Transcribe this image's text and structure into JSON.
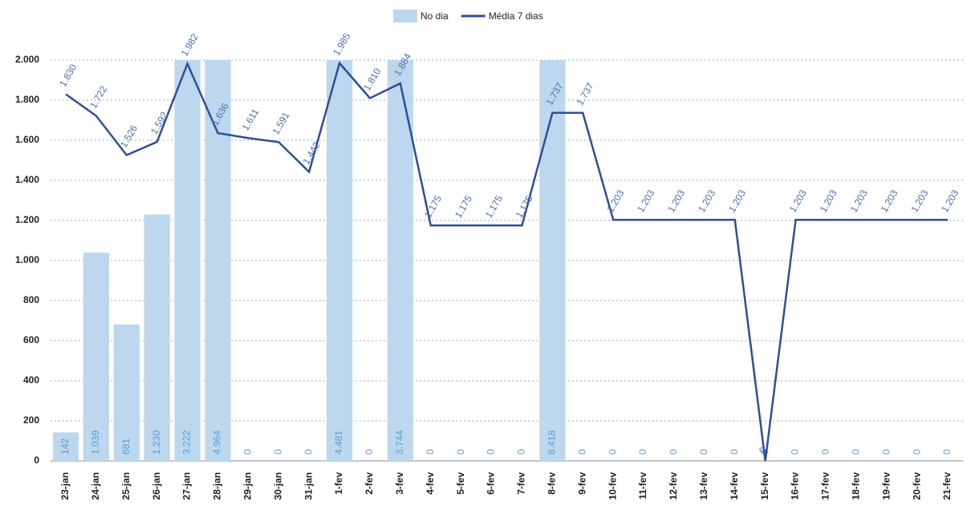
{
  "chart_data": {
    "type": "bar_line",
    "categories": [
      "23-jan",
      "24-jan",
      "25-jan",
      "26-jan",
      "27-jan",
      "28-jan",
      "29-jan",
      "30-jan",
      "31-jan",
      "1-fev",
      "2-fev",
      "3-fev",
      "4-fev",
      "5-fev",
      "6-fev",
      "7-fev",
      "8-fev",
      "9-fev",
      "10-fev",
      "11-fev",
      "12-fev",
      "13-fev",
      "14-fev",
      "15-fev",
      "16-fev",
      "17-fev",
      "18-fev",
      "19-fev",
      "20-fev",
      "21-fev"
    ],
    "series": [
      {
        "name": "No dia",
        "type": "bar",
        "color": "#bdd7ee",
        "values": [
          142,
          1039,
          681,
          1230,
          3222,
          4964,
          0,
          0,
          0,
          4481,
          0,
          3744,
          0,
          0,
          0,
          0,
          8418,
          0,
          0,
          0,
          0,
          0,
          0,
          0,
          0,
          0,
          0,
          0,
          0,
          0
        ],
        "value_labels": [
          "142",
          "1.039",
          "681",
          "1.230",
          "3.222",
          "4.964",
          "0",
          "0",
          "0",
          "4.481",
          "0",
          "3.744",
          "0",
          "0",
          "0",
          "0",
          "8.418",
          "0",
          "0",
          "0",
          "0",
          "0",
          "0",
          "0",
          "0",
          "0",
          "0",
          "0",
          "0",
          "0"
        ]
      },
      {
        "name": "Média 7 dias",
        "type": "line",
        "color": "#2f4f96",
        "values": [
          1830,
          1722,
          1526,
          1592,
          1982,
          1636,
          1611,
          1591,
          1442,
          1985,
          1810,
          1884,
          1175,
          1175,
          1175,
          1175,
          1737,
          1737,
          1203,
          1203,
          1203,
          1203,
          1203,
          0,
          1203,
          1203,
          1203,
          1203,
          1203,
          1203
        ],
        "value_labels": [
          "1.830",
          "1.722",
          "1.526",
          "1.592",
          "1.982",
          "1.636",
          "1.611",
          "1.591",
          "1.442",
          "1.985",
          "1.810",
          "1.884",
          "1.175",
          "1.175",
          "1.175",
          "1.175",
          "1.737",
          "1.737",
          "1.203",
          "1.203",
          "1.203",
          "1.203",
          "1.203",
          "0",
          "1.203",
          "1.203",
          "1.203",
          "1.203",
          "1.203",
          "1.203"
        ]
      }
    ],
    "ylim": [
      0,
      2000
    ],
    "yticks": [
      0,
      200,
      400,
      600,
      800,
      {
        "value": 1000,
        "label": "1.000"
      },
      {
        "value": 1200,
        "label": "1.200"
      },
      {
        "value": 1400,
        "label": "1.400"
      },
      {
        "value": 1600,
        "label": "1.600"
      },
      {
        "value": 1800,
        "label": "1.800"
      },
      {
        "value": 2000,
        "label": "2.000"
      }
    ],
    "grid": true,
    "legend": "top"
  }
}
